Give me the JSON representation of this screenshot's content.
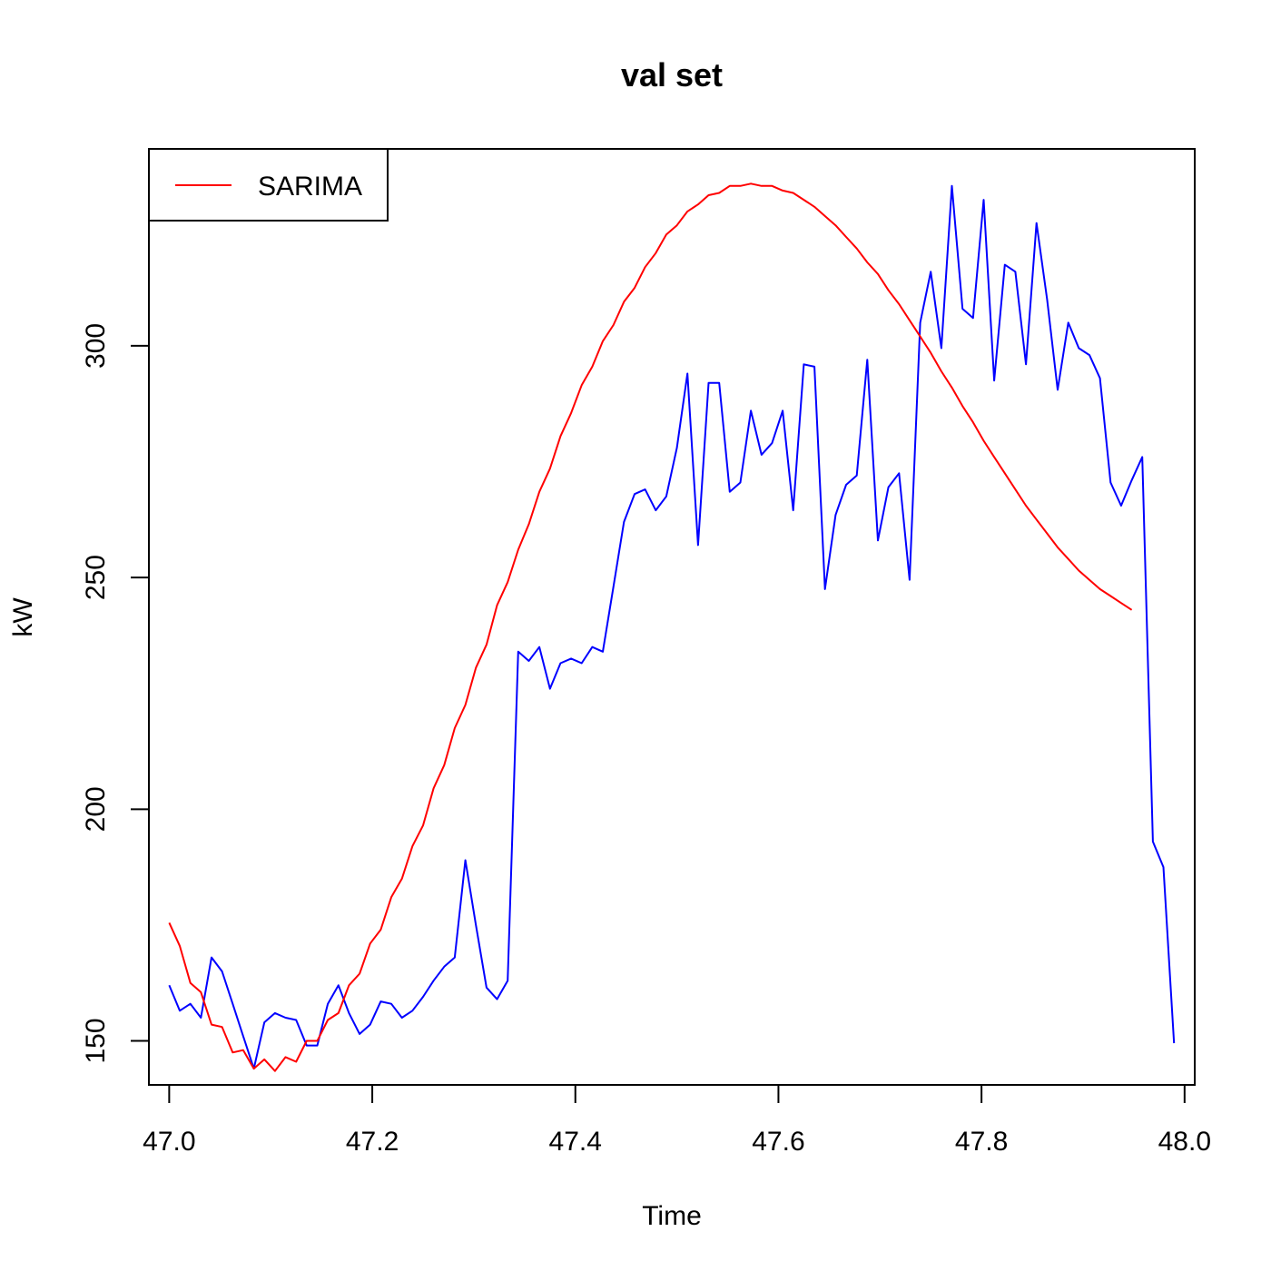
{
  "chart_data": {
    "type": "line",
    "title": "val set",
    "xlabel": "Time",
    "ylabel": "kW",
    "xlim": [
      46.98,
      48.01
    ],
    "ylim": [
      140.5,
      342.5
    ],
    "x_ticks": [
      "47.0",
      "47.2",
      "47.4",
      "47.6",
      "47.8",
      "48.0"
    ],
    "y_ticks": [
      "150",
      "200",
      "250",
      "300"
    ],
    "grid": false,
    "legend": {
      "position": "top-left",
      "entries": [
        "SARIMA"
      ]
    },
    "x_start": 47.0,
    "x_step": 0.0104167,
    "series": [
      {
        "name": "",
        "color": "#0000ff",
        "values": [
          162,
          156.5,
          158,
          155,
          168,
          165,
          158,
          151,
          144,
          154,
          156,
          155,
          154.5,
          149,
          149,
          158,
          162,
          156,
          151.5,
          153.5,
          158.5,
          158,
          155,
          156.5,
          159.5,
          163,
          166,
          168,
          189,
          175,
          161.5,
          159,
          163,
          234,
          232,
          235,
          226,
          231.5,
          232.5,
          231.5,
          235,
          234,
          248,
          262,
          268,
          269,
          264.5,
          267.5,
          278,
          294,
          257,
          292,
          292,
          268.5,
          270.5,
          286,
          276.5,
          279,
          286,
          264.5,
          296,
          295.5,
          247.5,
          263.5,
          270,
          272,
          297,
          258,
          269.5,
          272.5,
          249.5,
          305,
          316,
          299.5,
          334.5,
          308,
          306,
          331.5,
          292.5,
          317.5,
          316,
          296,
          326.5,
          310,
          290.5,
          305,
          299.5,
          298,
          293,
          270.5,
          265.5,
          271,
          276,
          193,
          187.5,
          149.5
        ]
      },
      {
        "name": "SARIMA",
        "color": "#ff0000",
        "values": [
          175.5,
          170.5,
          162.5,
          160.5,
          153.5,
          153,
          147.5,
          148,
          144,
          146,
          143.5,
          146.5,
          145.5,
          150,
          150,
          154.5,
          156,
          162,
          164.5,
          171,
          174,
          181,
          185,
          192,
          196.5,
          204.5,
          209.5,
          217.5,
          222.5,
          230.5,
          235.5,
          244,
          249,
          256,
          261.5,
          268.5,
          273.5,
          280.5,
          285.5,
          291.5,
          295.5,
          301,
          304.5,
          309.5,
          312.5,
          317,
          320,
          324,
          326,
          329,
          330.5,
          332.5,
          333,
          334.5,
          334.5,
          335,
          334.5,
          334.5,
          333.5,
          333,
          331.5,
          330,
          328,
          326,
          323.5,
          321,
          318,
          315.5,
          312,
          309,
          305.5,
          302,
          298.5,
          294.5,
          291,
          287,
          283.5,
          279.5,
          276,
          272.5,
          269,
          265.5,
          262.5,
          259.5,
          256.5,
          254,
          251.5,
          249.5,
          247.5,
          246,
          244.5,
          243
        ]
      }
    ]
  }
}
